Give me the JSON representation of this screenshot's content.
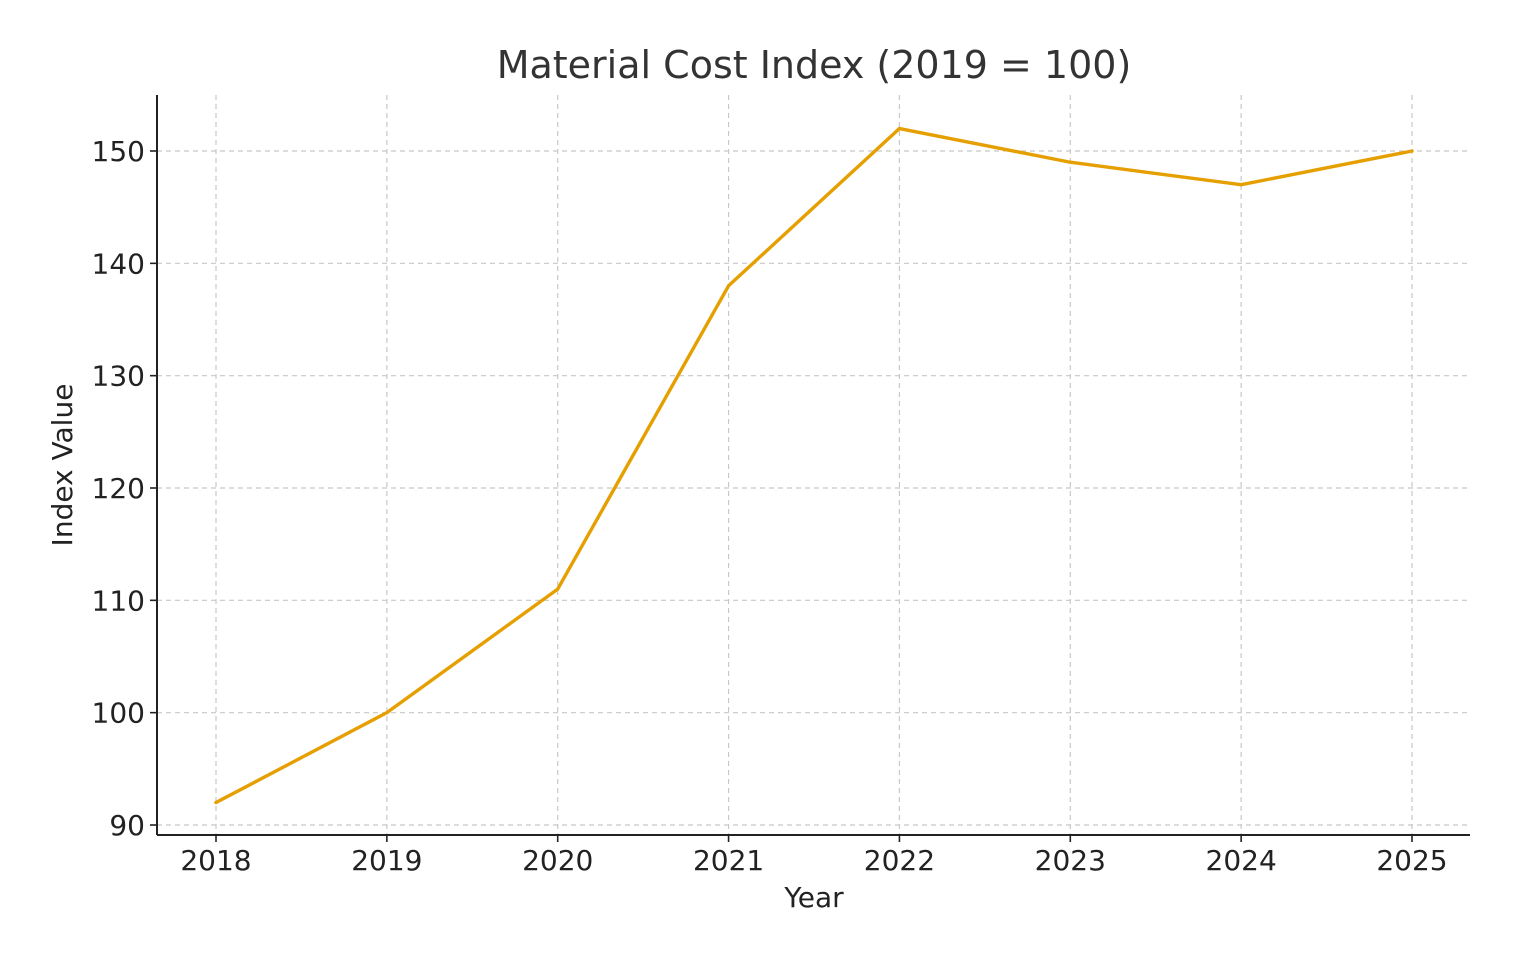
{
  "chart_data": {
    "type": "line",
    "title": "Material Cost Index (2019 = 100)",
    "xlabel": "Year",
    "ylabel": "Index Value",
    "categories": [
      "2018",
      "2019",
      "2020",
      "2021",
      "2022",
      "2023",
      "2024",
      "2025"
    ],
    "series": [
      {
        "name": "Material Cost Index",
        "values": [
          92,
          100,
          111,
          138,
          152,
          149,
          147,
          150
        ],
        "color": "#e69f00"
      }
    ],
    "yticks": [
      90,
      100,
      110,
      120,
      130,
      140,
      150
    ],
    "ylim": [
      89,
      155
    ],
    "grid": true,
    "legend": "none"
  }
}
